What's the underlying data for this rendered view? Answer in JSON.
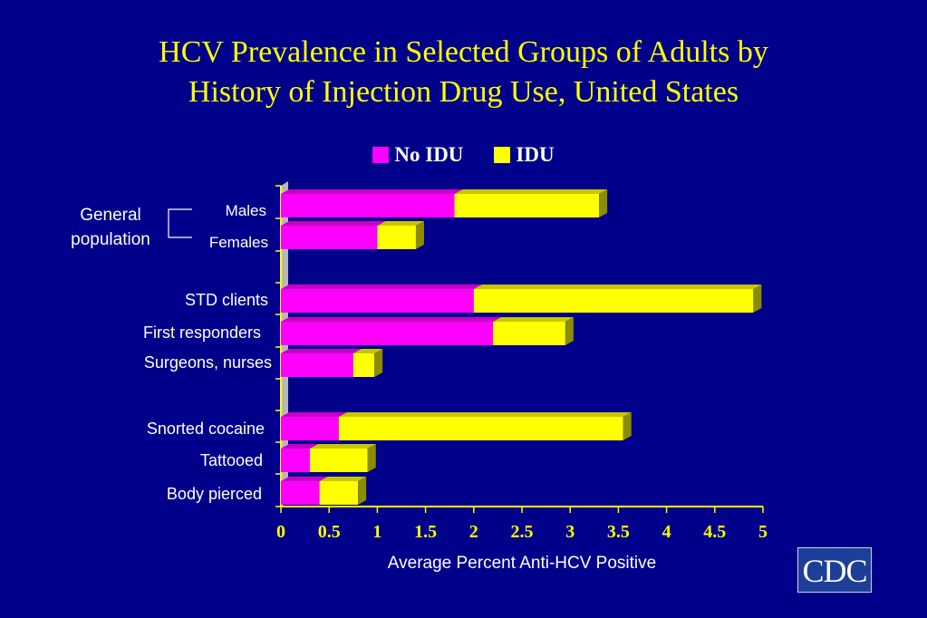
{
  "title_line1": "HCV Prevalence in Selected Groups of Adults by",
  "title_line2": "History of Injection Drug Use, United States",
  "group_label_line1": "General",
  "group_label_line2": "population",
  "colors": {
    "background": "#00008B",
    "no_idu": "#FF00FF",
    "idu": "#FFFF00",
    "title": "#FFFF00"
  },
  "logo_text": "CDC",
  "chart_data": {
    "type": "bar",
    "orientation": "horizontal",
    "stacked": true,
    "categories": [
      "Males",
      "Females",
      "STD clients",
      "First responders",
      "Surgeons, nurses",
      "Snorted cocaine",
      "Tattooed",
      "Body pierced"
    ],
    "series": [
      {
        "name": "No IDU",
        "values": [
          1.8,
          1.0,
          2.0,
          2.2,
          0.75,
          0.6,
          0.3,
          0.4
        ]
      },
      {
        "name": "IDU",
        "values": [
          1.5,
          0.4,
          2.9,
          0.75,
          0.22,
          2.95,
          0.6,
          0.4
        ]
      }
    ],
    "xlabel": "Average Percent Anti-HCV Positive",
    "ylabel": "",
    "xlim": [
      0,
      5
    ],
    "xticks": [
      "0",
      "0.5",
      "1",
      "1.5",
      "2",
      "2.5",
      "3",
      "3.5",
      "4",
      "4.5",
      "5"
    ],
    "legend_placement": "top-center",
    "grid": false
  }
}
